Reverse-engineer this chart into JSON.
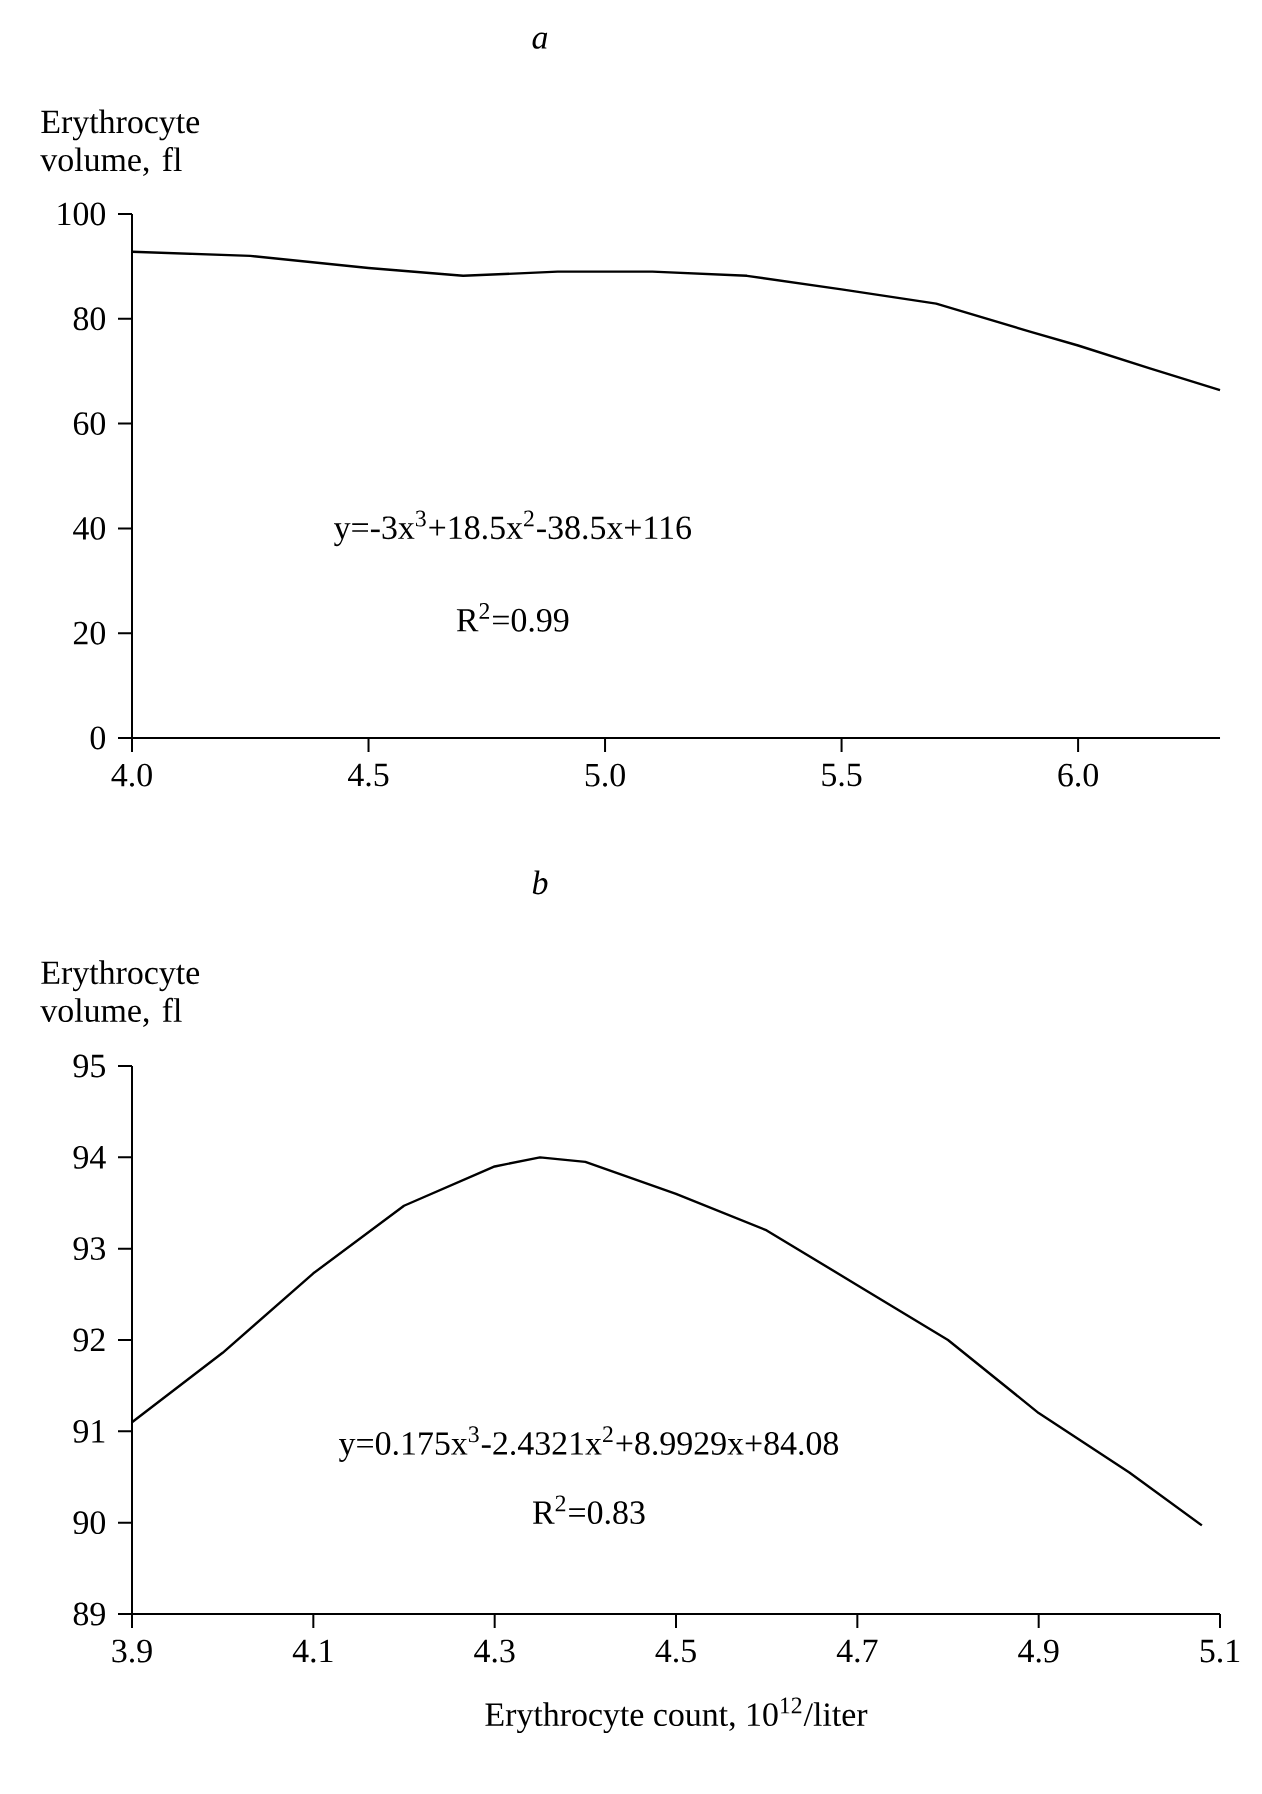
{
  "chart_data": [
    {
      "type": "line",
      "title": "a",
      "ylabel": "Erythrocyte volume, fl",
      "x": [
        4.0,
        4.25,
        4.5,
        4.7,
        4.9,
        5.1,
        5.3,
        5.5,
        5.7,
        5.9,
        6.0,
        6.15,
        6.3
      ],
      "series": [
        {
          "color": "#000000",
          "values": [
            92.8,
            92.0,
            89.7,
            88.2,
            89.0,
            89.0,
            88.2,
            85.6,
            82.9,
            77.5,
            74.9,
            70.6,
            66.4
          ]
        }
      ],
      "xlim": [
        4.0,
        6.3
      ],
      "ylim": [
        0,
        100
      ],
      "xticks": [
        {
          "value": 4.0,
          "label": "4.0"
        },
        4.5,
        {
          "value": 5.0,
          "label": "5.0"
        },
        5.5,
        {
          "value": 6.0,
          "label": "6.0"
        }
      ],
      "yticks": [
        0,
        20,
        40,
        60,
        80,
        100
      ],
      "annotations": [
        "y=-3x$^{3}$+18.5x$^{2}$-38.5x+116",
        "R$^{2}$=0.99"
      ]
    },
    {
      "type": "line",
      "title": "b",
      "ylabel": "Erythrocyte volume, fl",
      "xlabel": "Erythrocyte count, 10$^{12}$/liter",
      "x": [
        3.9,
        4.0,
        4.1,
        4.2,
        4.3,
        4.35,
        4.4,
        4.5,
        4.6,
        4.7,
        4.8,
        4.9,
        5.0,
        5.08
      ],
      "series": [
        {
          "color": "#000000",
          "values": [
            91.1,
            91.86,
            92.73,
            93.47,
            93.9,
            94.0,
            93.95,
            93.6,
            93.2,
            92.6,
            92.0,
            91.2,
            90.55,
            89.97
          ]
        }
      ],
      "xlim": [
        3.9,
        5.1
      ],
      "ylim": [
        89,
        95
      ],
      "xticks": [
        3.9,
        4.1,
        4.3,
        4.5,
        4.7,
        4.9,
        5.1
      ],
      "yticks": [
        89,
        90,
        91,
        92,
        93,
        94,
        95
      ],
      "annotations": [
        "y=0.175x$^{3}$-2.4321x$^{2}$+8.9929x+84.08",
        "R$^{2}$=0.83"
      ]
    }
  ]
}
